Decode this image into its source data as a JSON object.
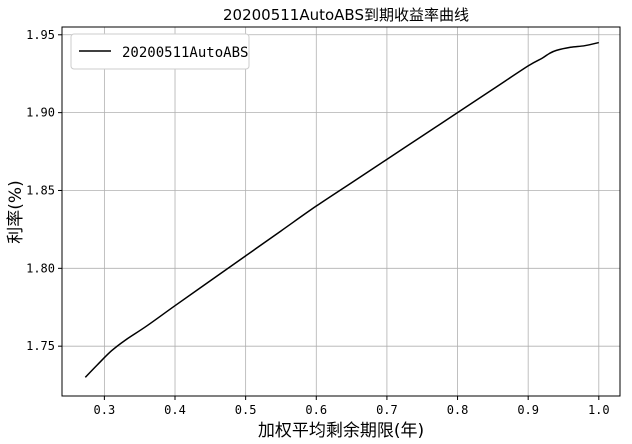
{
  "chart_data": {
    "type": "line",
    "title": "20200511AutoABS到期收益率曲线",
    "xlabel": "加权平均剩余期限(年)",
    "ylabel": "利率(%)",
    "xlim": [
      0.24,
      1.03
    ],
    "ylim": [
      1.718,
      1.955
    ],
    "xticks": [
      0.3,
      0.4,
      0.5,
      0.6,
      0.7,
      0.8,
      0.9,
      1.0
    ],
    "xtick_labels": [
      "0.3",
      "0.4",
      "0.5",
      "0.6",
      "0.7",
      "0.8",
      "0.9",
      "1.0"
    ],
    "yticks": [
      1.75,
      1.8,
      1.85,
      1.9,
      1.95
    ],
    "ytick_labels": [
      "1.75",
      "1.80",
      "1.85",
      "1.90",
      "1.95"
    ],
    "grid": true,
    "legend_position": "top-left",
    "series": [
      {
        "name": "20200511AutoABS",
        "color": "#000000",
        "x": [
          0.273,
          0.29,
          0.31,
          0.33,
          0.36,
          0.4,
          0.45,
          0.5,
          0.55,
          0.6,
          0.65,
          0.7,
          0.75,
          0.8,
          0.85,
          0.9,
          0.92,
          0.93,
          0.94,
          0.96,
          0.98,
          1.0
        ],
        "y": [
          1.73,
          1.738,
          1.747,
          1.754,
          1.763,
          1.776,
          1.792,
          1.808,
          1.824,
          1.84,
          1.855,
          1.87,
          1.885,
          1.9,
          1.915,
          1.93,
          1.935,
          1.938,
          1.94,
          1.942,
          1.943,
          1.945
        ]
      }
    ]
  }
}
